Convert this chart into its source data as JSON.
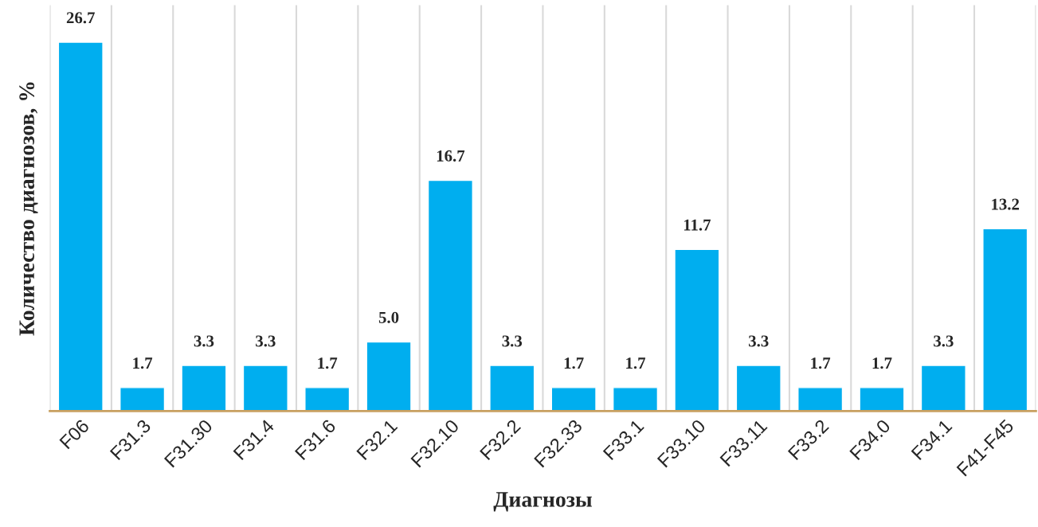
{
  "chart_data": {
    "type": "bar",
    "xlabel": "Диагнозы",
    "ylabel": "Количество диагнозов, %",
    "categories": [
      "F06",
      "F31.3",
      "F31.30",
      "F31.4",
      "F31.6",
      "F32.1",
      "F32.10",
      "F32.2",
      "F32.33",
      "F33.1",
      "F33.10",
      "F33.11",
      "F33.2",
      "F34.0",
      "F34.1",
      "F41-F45"
    ],
    "values": [
      26.7,
      1.7,
      3.3,
      3.3,
      1.7,
      5.0,
      16.7,
      3.3,
      1.7,
      1.7,
      11.7,
      3.3,
      1.7,
      1.7,
      3.3,
      13.2
    ],
    "value_labels": [
      "26.7",
      "1.7",
      "3.3",
      "3.3",
      "1.7",
      "5.0",
      "16.7",
      "3.3",
      "1.7",
      "1.7",
      "11.7",
      "3.3",
      "1.7",
      "1.7",
      "3.3",
      "13.2"
    ],
    "color": "#00aeef",
    "grid": "x"
  }
}
